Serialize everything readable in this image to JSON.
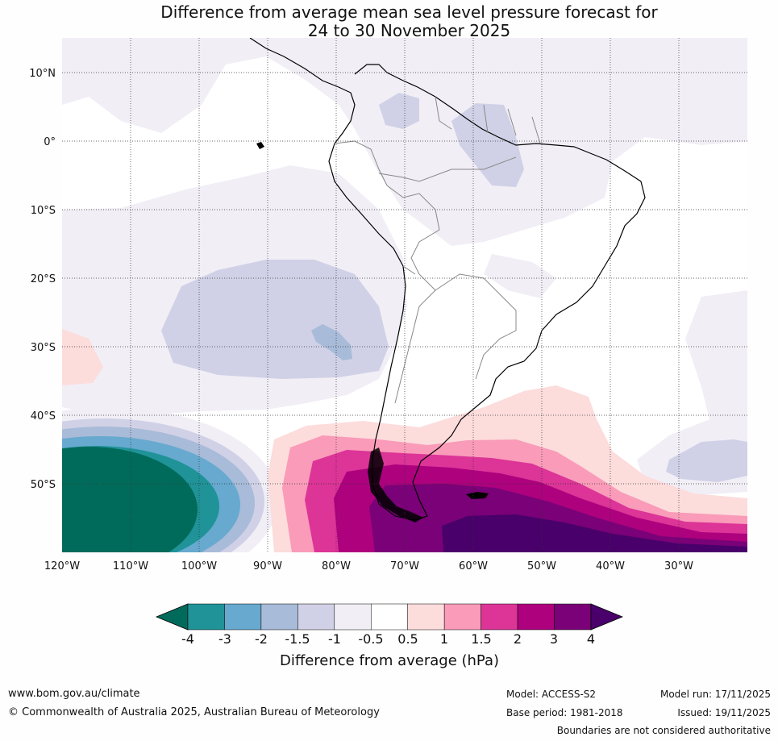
{
  "map": {
    "title_line1": "Difference from average mean sea level pressure forecast for",
    "title_line2": "24 to 30 November 2025",
    "lat_labels": [
      "10°N",
      "0°",
      "10°S",
      "20°S",
      "30°S",
      "40°S",
      "50°S"
    ],
    "lon_labels": [
      "120°W",
      "110°W",
      "100°W",
      "90°W",
      "80°W",
      "70°W",
      "60°W",
      "50°W",
      "40°W",
      "30°W"
    ],
    "region": "South America and surrounding oceans",
    "extent": {
      "lon_min": -120,
      "lon_max": -20,
      "lat_min": -60,
      "lat_max": 15
    },
    "anomaly_features": [
      {
        "name": "strong-low-anomaly",
        "location": "Southeast Pacific near 115°W 55°S",
        "value_hPa": "< -4"
      },
      {
        "name": "high-anomaly",
        "location": "Southern South America / Drake Passage",
        "value_hPa": "> 4"
      },
      {
        "name": "weak-low-anomaly",
        "location": "Southeast Pacific near 95°W 28°S",
        "value_hPa": "-1.5 to -2"
      }
    ]
  },
  "colorbar": {
    "title": "Difference from average (hPa)",
    "labels": [
      "-4",
      "-3",
      "-2",
      "-1.5",
      "-1",
      "-0.5",
      "0.5",
      "1",
      "1.5",
      "2",
      "3",
      "4"
    ],
    "colors": [
      "#016b5b",
      "#1f9398",
      "#67a9cf",
      "#a8bbd8",
      "#d0d1e6",
      "#f1eef6",
      "#ffffff",
      "#fddcdc",
      "#f99bb9",
      "#dc3497",
      "#ae017e",
      "#7a0177",
      "#49006a"
    ]
  },
  "footer": {
    "website": "www.bom.gov.au/climate",
    "copyright": "© Commonwealth of Australia 2025, Australian Bureau of Meteorology",
    "model": "Model: ACCESS-S2",
    "base_period": "Base period: 1981-2018",
    "model_run": "Model run: 17/11/2025",
    "issued": "Issued: 19/11/2025",
    "disclaimer": "Boundaries are not considered authoritative"
  }
}
